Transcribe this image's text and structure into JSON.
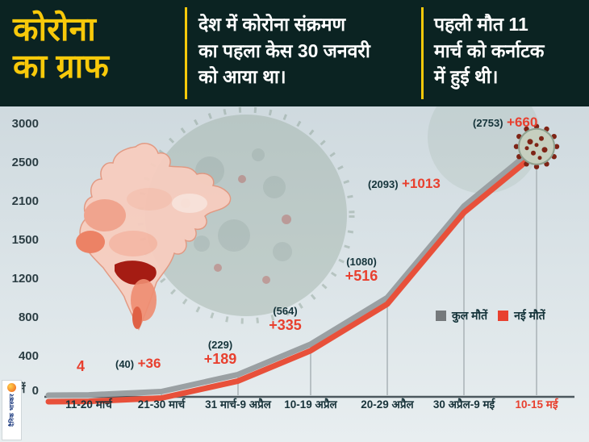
{
  "header": {
    "title": "कोरोना\nका ग्राफ",
    "note_first_case": "देश में कोरोना संक्रमण\nका पहला केस 30 जनवरी\nको आया था।",
    "note_first_death": "पहली मौत 11\nमार्च को कर्नाटक\nमें हुई थी।"
  },
  "logo": {
    "brand": "दैनिक भास्कर"
  },
  "colors": {
    "header_bg": "#0b2322",
    "accent_yellow": "#f8c90a",
    "red": "#e8402f",
    "dark_text": "#14333a",
    "total_line": "#9aa0a3",
    "new_line": "#e8503a"
  },
  "chart_data": {
    "type": "line",
    "title": "कोरोना का ग्राफ",
    "ylabel": "मौतें",
    "ylim": [
      0,
      3000
    ],
    "grid": "vertical-stems",
    "legend_position": "middle-right",
    "y_ticks": [
      "3000",
      "2500",
      "2100",
      "1500",
      "1200",
      "800",
      "400",
      "0"
    ],
    "categories": [
      "11-20 मार्च",
      "21-30 मार्च",
      "31 मार्च-9 अप्रैल",
      "10-19 अप्रैल",
      "20-29 अप्रैल",
      "30 अप्रैल-9 मई",
      "10-15 मई"
    ],
    "series": [
      {
        "name": "कुल मौतें",
        "color": "#9aa0a3",
        "values": [
          4,
          40,
          229,
          564,
          1080,
          2093,
          2753
        ]
      },
      {
        "name": "नई मौतें",
        "color": "#e8503a",
        "values": [
          4,
          36,
          189,
          335,
          516,
          1013,
          660
        ]
      }
    ],
    "point_labels": [
      {
        "total": "",
        "new": "4"
      },
      {
        "total": "(40)",
        "new": "+36"
      },
      {
        "total": "(229)",
        "new": "+189"
      },
      {
        "total": "(564)",
        "new": "+335"
      },
      {
        "total": "(1080)",
        "new": "+516"
      },
      {
        "total": "(2093)",
        "new": "+1013"
      },
      {
        "total": "(2753)",
        "new": "+660"
      }
    ],
    "legend": [
      {
        "label": "कुल मौतें",
        "color": "#75797c"
      },
      {
        "label": "नई मौतें",
        "color": "#e8402f"
      }
    ]
  }
}
